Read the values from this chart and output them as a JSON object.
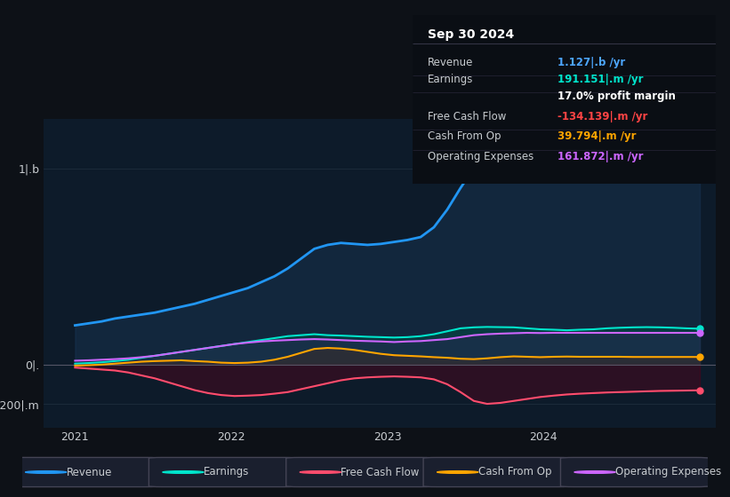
{
  "title": "Sep 30 2024",
  "background_color": "#0d1117",
  "plot_bg_color": "#0d1b2a",
  "grid_color": "#1e2d3d",
  "text_color": "#c8ccd0",
  "table": {
    "header": "Sep 30 2024",
    "rows": [
      {
        "label": "Revenue",
        "value": "1.127|.b /yr",
        "value_color": "#4da6ff"
      },
      {
        "label": "Earnings",
        "value": "191.151|.m /yr",
        "value_color": "#00e5cc"
      },
      {
        "label": "",
        "value": "17.0% profit margin",
        "value_color": "#ffffff"
      },
      {
        "label": "Free Cash Flow",
        "value": "-134.139|.m /yr",
        "value_color": "#ff4444"
      },
      {
        "label": "Cash From Op",
        "value": "39.794|.m /yr",
        "value_color": "#ffa500"
      },
      {
        "label": "Operating Expenses",
        "value": "161.872|.m /yr",
        "value_color": "#cc66ff"
      }
    ]
  },
  "series": {
    "revenue": {
      "color": "#2196f3",
      "fill_color": "#1a3a5c",
      "label": "Revenue"
    },
    "earnings": {
      "color": "#00e5cc",
      "fill_color": "#004d44",
      "label": "Earnings"
    },
    "free_cash_flow": {
      "color": "#ff4d6d",
      "fill_color": "#5c001a",
      "label": "Free Cash Flow"
    },
    "cash_from_op": {
      "color": "#ffa500",
      "fill_color": "#4d3000",
      "label": "Cash From Op"
    },
    "operating_expenses": {
      "color": "#cc66ff",
      "fill_color": "#3d1a5c",
      "label": "Operating Expenses"
    }
  },
  "legend": {
    "items": [
      "Revenue",
      "Earnings",
      "Free Cash Flow",
      "Cash From Op",
      "Operating Expenses"
    ],
    "colors": [
      "#2196f3",
      "#00e5cc",
      "#ff4d6d",
      "#ffa500",
      "#cc66ff"
    ]
  }
}
